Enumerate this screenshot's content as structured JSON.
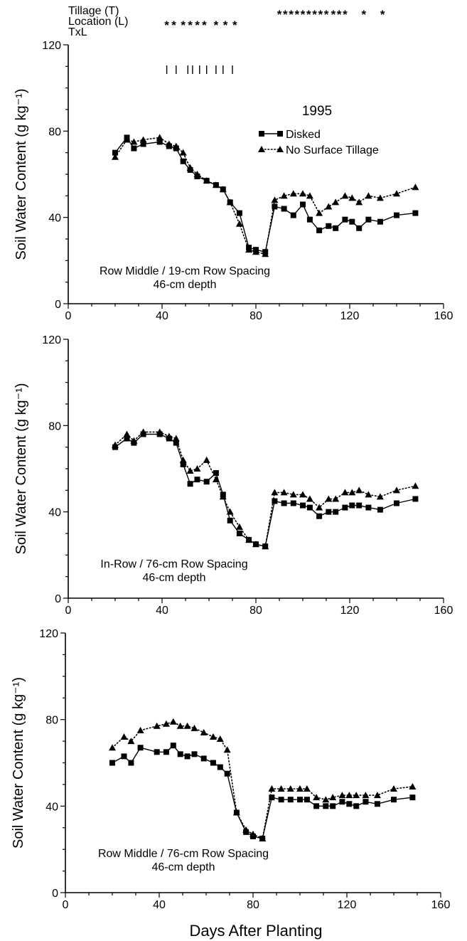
{
  "significance": {
    "labels": {
      "tillage": "Tillage (T)",
      "location": "Location (L)",
      "txl": "TxL"
    },
    "tillage_marks": [
      {
        "day": 90,
        "text": "*"
      },
      {
        "day": 92.5,
        "text": "*"
      },
      {
        "day": 95,
        "text": "*"
      },
      {
        "day": 97.5,
        "text": "*"
      },
      {
        "day": 100,
        "text": "*"
      },
      {
        "day": 102.5,
        "text": "*"
      },
      {
        "day": 105,
        "text": "*"
      },
      {
        "day": 107.5,
        "text": "*"
      },
      {
        "day": 110,
        "text": "*"
      },
      {
        "day": 113,
        "text": "*"
      },
      {
        "day": 115.5,
        "text": "*"
      },
      {
        "day": 118,
        "text": "*"
      },
      {
        "day": 126,
        "text": "*"
      },
      {
        "day": 134,
        "text": "*"
      }
    ],
    "location_marks": [
      {
        "day": 42,
        "text": "*"
      },
      {
        "day": 45,
        "text": "*"
      },
      {
        "day": 49,
        "text": "*"
      },
      {
        "day": 52,
        "text": "*"
      },
      {
        "day": 55,
        "text": "*"
      },
      {
        "day": 58,
        "text": "*"
      },
      {
        "day": 63,
        "text": "*"
      },
      {
        "day": 67,
        "text": "*"
      },
      {
        "day": 71,
        "text": "*"
      }
    ],
    "panel1_ticks": [
      42,
      46,
      51,
      53,
      56,
      59,
      63,
      66,
      70
    ]
  },
  "chart_data": [
    {
      "type": "line",
      "panel_year": "1995",
      "annotation_line1": "Row Middle / 19-cm Row Spacing",
      "annotation_line2": "46-cm depth",
      "legend": [
        "Disked",
        "No Surface Tillage"
      ],
      "xlim": [
        0,
        160
      ],
      "ylim": [
        0,
        120
      ],
      "xticks": [
        0,
        40,
        80,
        120,
        160
      ],
      "yticks": [
        0,
        40,
        80,
        120
      ],
      "xlabel": "",
      "ylabel": "Soil Water Content (g kg⁻¹)",
      "series": [
        {
          "name": "Disked",
          "marker": "square",
          "line": "solid",
          "x": [
            20,
            25,
            28,
            32,
            39,
            43,
            46,
            49,
            52,
            55,
            59,
            63,
            66,
            69,
            73,
            77,
            80,
            84,
            88,
            92,
            96,
            100,
            103,
            107,
            111,
            114,
            118,
            121,
            124,
            128,
            133,
            140,
            148
          ],
          "y": [
            70,
            77,
            72,
            74,
            75,
            73,
            72,
            66,
            62,
            59,
            57,
            55,
            53,
            47,
            42,
            26,
            25,
            24,
            45,
            44,
            41,
            46,
            39,
            34,
            36,
            35,
            39,
            38,
            35,
            39,
            38,
            41,
            42
          ]
        },
        {
          "name": "No Surface Tillage",
          "marker": "triangle",
          "line": "dotted",
          "x": [
            20,
            25,
            28,
            32,
            39,
            43,
            46,
            49,
            52,
            55,
            59,
            63,
            66,
            69,
            73,
            77,
            80,
            84,
            88,
            92,
            96,
            100,
            103,
            107,
            111,
            114,
            118,
            121,
            124,
            128,
            133,
            140,
            148
          ],
          "y": [
            68,
            76,
            75,
            76,
            77,
            74,
            73,
            70,
            63,
            60,
            57,
            55,
            53,
            47,
            37,
            25,
            24,
            23,
            48,
            50,
            51,
            51,
            50,
            42,
            45,
            47,
            50,
            49,
            47,
            50,
            49,
            51,
            54
          ]
        }
      ]
    },
    {
      "type": "line",
      "annotation_line1": "In-Row / 76-cm Row Spacing",
      "annotation_line2": "46-cm depth",
      "xlim": [
        0,
        160
      ],
      "ylim": [
        0,
        120
      ],
      "xticks": [
        0,
        40,
        80,
        120,
        160
      ],
      "yticks": [
        0,
        40,
        80,
        120
      ],
      "xlabel": "",
      "ylabel": "Soil Water Content (g kg⁻¹)",
      "series": [
        {
          "name": "Disked",
          "marker": "square",
          "line": "solid",
          "x": [
            20,
            25,
            28,
            32,
            39,
            43,
            46,
            49,
            52,
            55,
            59,
            63,
            66,
            69,
            73,
            77,
            80,
            84,
            88,
            92,
            96,
            100,
            103,
            107,
            111,
            114,
            118,
            121,
            124,
            128,
            133,
            140,
            148
          ],
          "y": [
            70,
            74,
            72,
            76,
            76,
            74,
            72,
            62,
            53,
            55,
            54,
            58,
            48,
            36,
            30,
            27,
            25,
            24,
            45,
            44,
            44,
            43,
            42,
            38,
            40,
            40,
            42,
            43,
            43,
            42,
            41,
            44,
            46
          ]
        },
        {
          "name": "No Surface Tillage",
          "marker": "triangle",
          "line": "dotted",
          "x": [
            20,
            25,
            28,
            32,
            39,
            43,
            46,
            49,
            52,
            55,
            59,
            63,
            66,
            69,
            73,
            77,
            80,
            84,
            88,
            92,
            96,
            100,
            103,
            107,
            111,
            114,
            118,
            121,
            124,
            128,
            133,
            140,
            148
          ],
          "y": [
            71,
            76,
            73,
            77,
            77,
            75,
            74,
            64,
            59,
            60,
            64,
            55,
            47,
            40,
            33,
            27,
            25,
            24,
            49,
            49,
            48,
            48,
            46,
            42,
            46,
            46,
            49,
            49,
            50,
            48,
            47,
            50,
            52
          ]
        }
      ]
    },
    {
      "type": "line",
      "annotation_line1": "Row Middle / 76-cm Row Spacing",
      "annotation_line2": "46-cm depth",
      "xlim": [
        0,
        160
      ],
      "ylim": [
        0,
        120
      ],
      "xticks": [
        0,
        40,
        80,
        120,
        160
      ],
      "yticks": [
        0,
        40,
        80,
        120
      ],
      "xlabel": "Days After Planting",
      "ylabel": "Soil Water Content (g kg⁻¹)",
      "series": [
        {
          "name": "Disked",
          "marker": "square",
          "line": "solid",
          "x": [
            20,
            25,
            28,
            32,
            39,
            43,
            46,
            49,
            52,
            55,
            59,
            63,
            66,
            69,
            73,
            77,
            80,
            84,
            88,
            92,
            96,
            100,
            103,
            107,
            111,
            114,
            118,
            121,
            124,
            128,
            133,
            140,
            148
          ],
          "y": [
            60,
            63,
            60,
            67,
            65,
            65,
            68,
            64,
            63,
            64,
            62,
            60,
            58,
            55,
            37,
            28,
            26,
            25,
            44,
            43,
            43,
            43,
            43,
            40,
            40,
            40,
            42,
            41,
            40,
            42,
            41,
            43,
            44
          ]
        },
        {
          "name": "No Surface Tillage",
          "marker": "triangle",
          "line": "dotted",
          "x": [
            20,
            25,
            28,
            32,
            39,
            43,
            46,
            49,
            52,
            55,
            59,
            63,
            66,
            69,
            73,
            77,
            80,
            84,
            88,
            92,
            96,
            100,
            103,
            107,
            111,
            114,
            118,
            121,
            124,
            128,
            133,
            140,
            148
          ],
          "y": [
            67,
            72,
            70,
            75,
            77,
            78,
            79,
            77,
            77,
            76,
            74,
            72,
            71,
            66,
            37,
            29,
            27,
            25,
            48,
            48,
            48,
            48,
            48,
            44,
            43,
            44,
            45,
            45,
            45,
            45,
            45,
            48,
            49
          ]
        }
      ]
    }
  ]
}
